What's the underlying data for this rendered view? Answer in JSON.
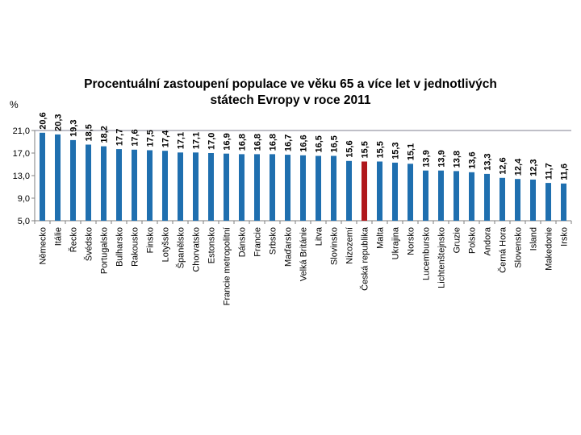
{
  "chart_data": {
    "type": "bar",
    "title_lines": [
      "Procentuální zastoupení populace ve věku 65 a více let v jednotlivých",
      "státech Evropy v roce 2011"
    ],
    "ylabel": "%",
    "xlabel": "",
    "ylim": [
      5,
      21
    ],
    "yticks": [
      "5,0",
      "9,0",
      "13,0",
      "17,0",
      "21,0"
    ],
    "ytick_values": [
      5,
      9,
      13,
      17,
      21
    ],
    "grid": false,
    "legend": "none",
    "colors": {
      "default": "#1f6faf",
      "highlight": "#b0171c",
      "axis": "#7f7f7f",
      "reference_line": "#7f7f8f"
    },
    "reference_line_value": 21,
    "highlight_category": "Česká republika",
    "categories": [
      "Německo",
      "Itálie",
      "Řecko",
      "Švédsko",
      "Portugalsko",
      "Bulharsko",
      "Rakousko",
      "Finsko",
      "Lotyšsko",
      "Španělsko",
      "Chorvatsko",
      "Estonsko",
      "Francie metropolitní",
      "Dánsko",
      "Francie",
      "Srbsko",
      "Maďarsko",
      "Velká Británie",
      "Litva",
      "Slovinsko",
      "Nizozemí",
      "Česká republika",
      "Malta",
      "Ukrajina",
      "Norsko",
      "Lucembursko",
      "Lichtenštejnsko",
      "Gruzie",
      "Polsko",
      "Andora",
      "Černá Hora",
      "Slovensko",
      "Island",
      "Makedonie",
      "Irsko"
    ],
    "values": [
      20.6,
      20.3,
      19.3,
      18.5,
      18.2,
      17.7,
      17.6,
      17.5,
      17.4,
      17.1,
      17.1,
      17.0,
      16.9,
      16.8,
      16.8,
      16.8,
      16.7,
      16.6,
      16.5,
      16.5,
      15.6,
      15.5,
      15.5,
      15.3,
      15.1,
      13.9,
      13.9,
      13.8,
      13.6,
      13.3,
      12.6,
      12.4,
      12.3,
      11.7,
      11.6
    ],
    "value_labels": [
      "20,6",
      "20,3",
      "19,3",
      "18,5",
      "18,2",
      "17,7",
      "17,6",
      "17,5",
      "17,4",
      "17,1",
      "17,1",
      "17,0",
      "16,9",
      "16,8",
      "16,8",
      "16,8",
      "16,7",
      "16,6",
      "16,5",
      "16,5",
      "15,6",
      "15,5",
      "15,5",
      "15,3",
      "15,1",
      "13,9",
      "13,9",
      "13,8",
      "13,6",
      "13,3",
      "12,6",
      "12,4",
      "12,3",
      "11,7",
      "11,6"
    ]
  }
}
